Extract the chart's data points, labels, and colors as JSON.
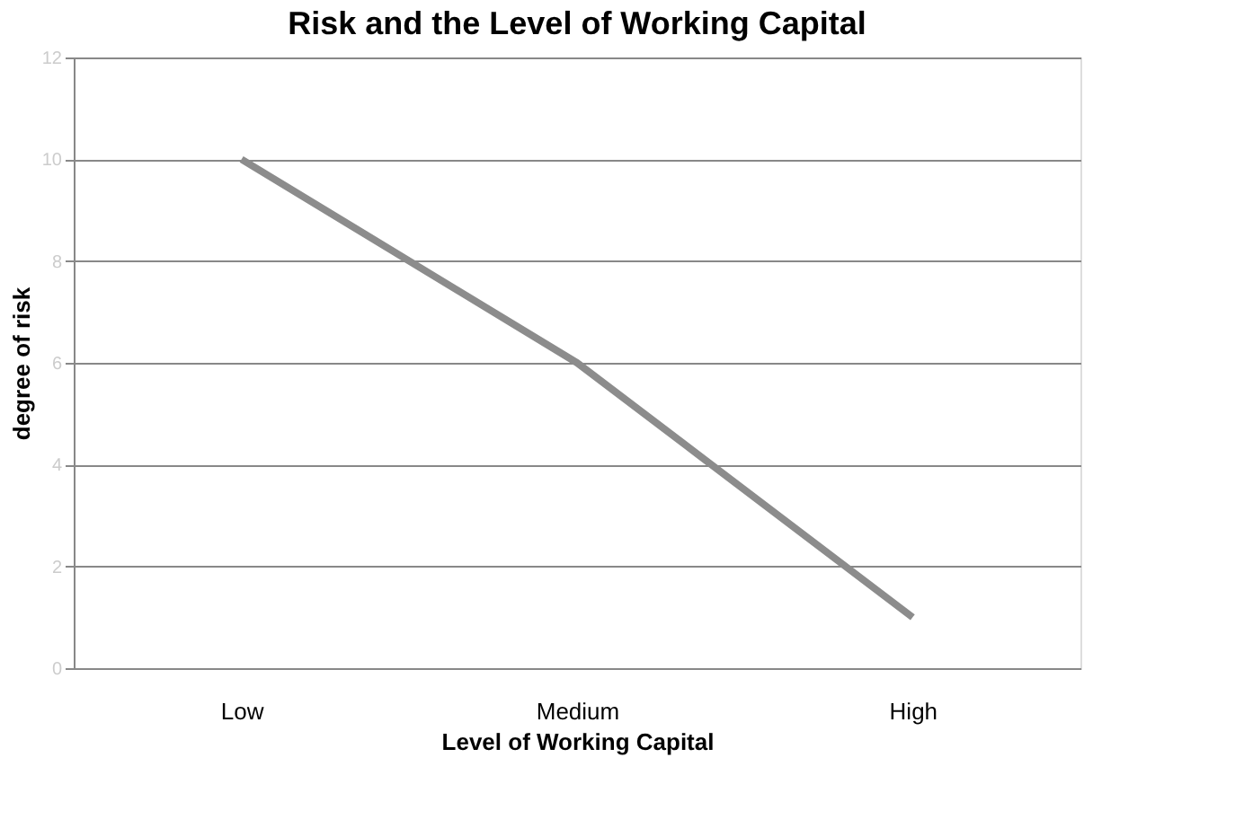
{
  "chart_data": {
    "type": "line",
    "title": "Risk and the Level of Working Capital",
    "xlabel": "Level of Working Capital",
    "ylabel": "degree of risk",
    "categories": [
      "Low",
      "Medium",
      "High"
    ],
    "series": [
      {
        "color": "#8c8c8c",
        "values": [
          10,
          6,
          1
        ]
      }
    ],
    "ylim": [
      0,
      12
    ],
    "yticks": [
      0,
      2,
      4,
      6,
      8,
      10,
      12
    ],
    "grid": "y",
    "legend": false,
    "marker": "none",
    "line_style": "solid"
  }
}
